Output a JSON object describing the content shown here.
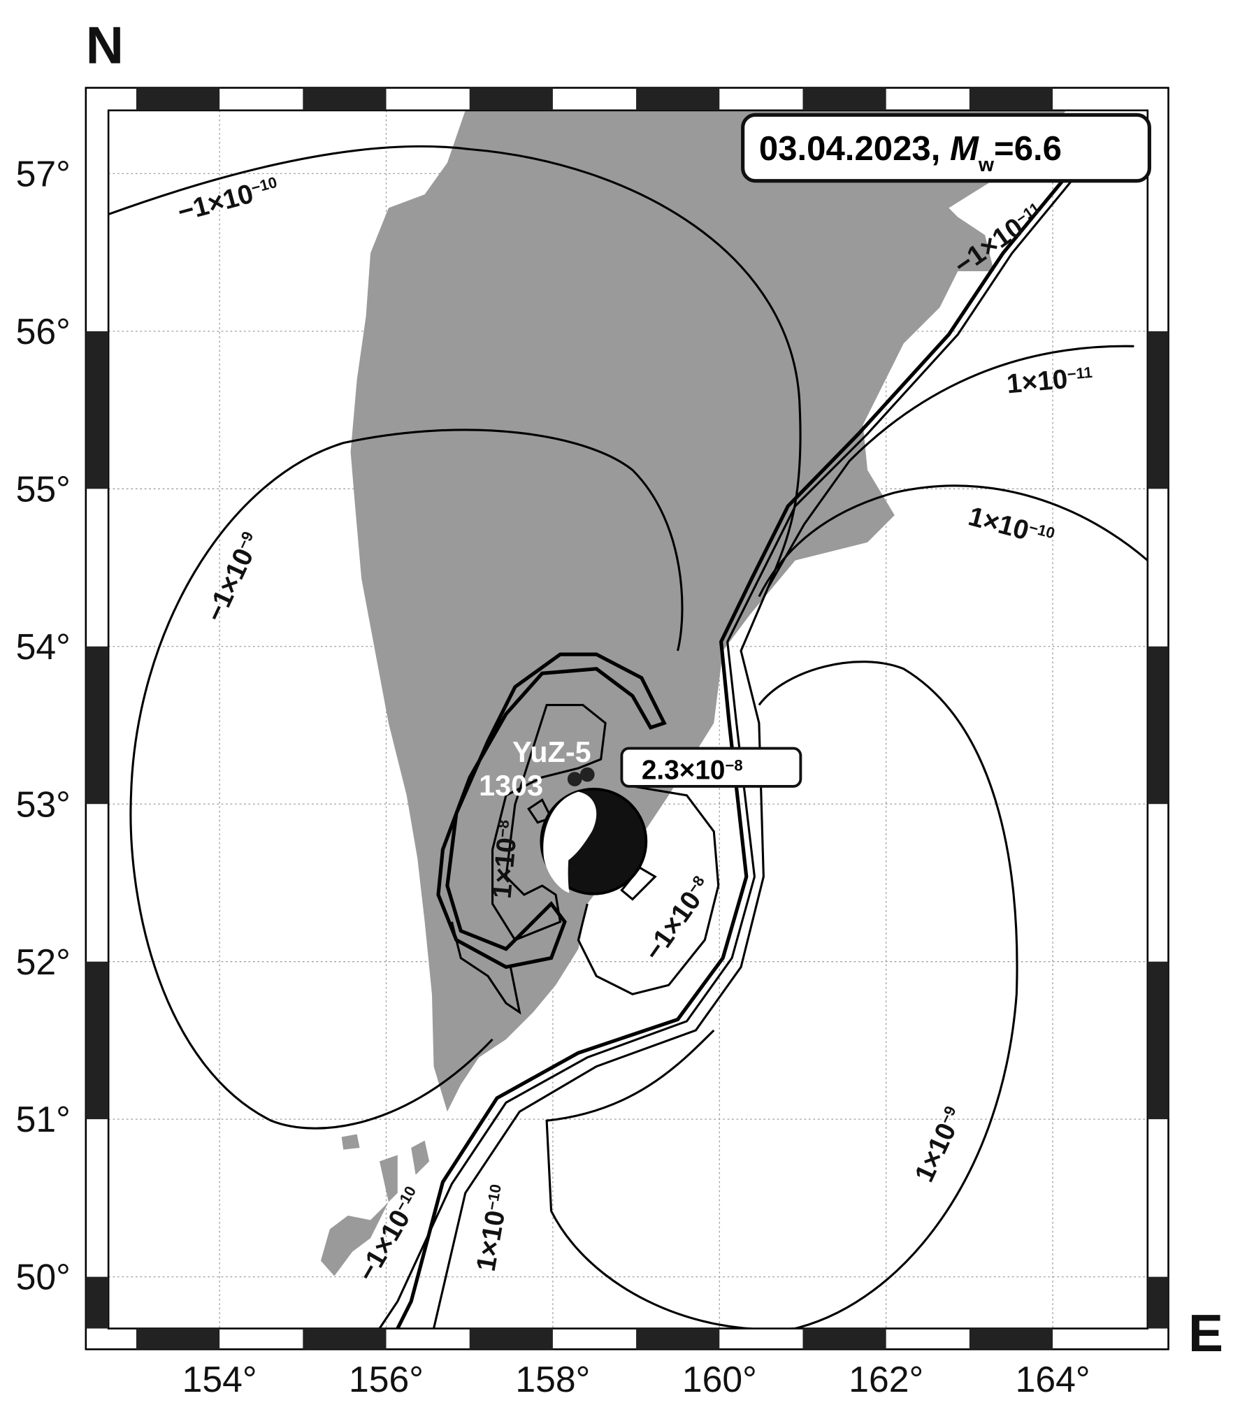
{
  "map": {
    "north_label": "N",
    "east_label": "E",
    "event": {
      "date": "03.04.2023,",
      "magnitude_symbol": "M",
      "magnitude_subscript": "w",
      "magnitude_value": "=6.6"
    },
    "latitude_ticks": [
      {
        "value": 57,
        "label": "57°"
      },
      {
        "value": 56,
        "label": "56°"
      },
      {
        "value": 55,
        "label": "55°"
      },
      {
        "value": 54,
        "label": "54°"
      },
      {
        "value": 53,
        "label": "53°"
      },
      {
        "value": 52,
        "label": "52°"
      },
      {
        "value": 51,
        "label": "51°"
      },
      {
        "value": 50,
        "label": "50°"
      }
    ],
    "longitude_ticks": [
      {
        "value": 154,
        "label": "154°"
      },
      {
        "value": 156,
        "label": "156°"
      },
      {
        "value": 158,
        "label": "158°"
      },
      {
        "value": 160,
        "label": "160°"
      },
      {
        "value": 162,
        "label": "162°"
      },
      {
        "value": 164,
        "label": "164°"
      }
    ],
    "stations": [
      {
        "name": "YuZ-5"
      },
      {
        "name": "1303"
      }
    ],
    "station_value": {
      "mantissa": "2.3×10",
      "exponent": "−8"
    },
    "contour_labels": [
      {
        "mantissa": "−1×10",
        "exponent": "−10"
      },
      {
        "mantissa": "−1×10",
        "exponent": "−11"
      },
      {
        "mantissa": "1×10",
        "exponent": "−11"
      },
      {
        "mantissa": "1×10",
        "exponent": "−10"
      },
      {
        "mantissa": "−1×10",
        "exponent": "−9"
      },
      {
        "mantissa": "1×10",
        "exponent": "−8"
      },
      {
        "mantissa": "−1×10",
        "exponent": "−8"
      },
      {
        "mantissa": "1×10",
        "exponent": "−9"
      },
      {
        "mantissa": "−1×10",
        "exponent": "−10"
      },
      {
        "mantissa": "1×10",
        "exponent": "−10"
      }
    ]
  }
}
